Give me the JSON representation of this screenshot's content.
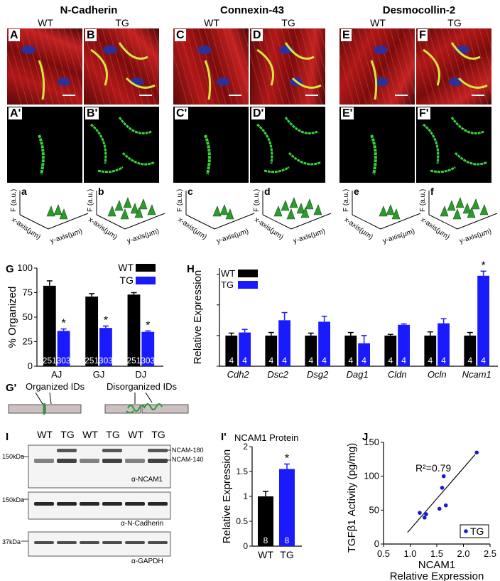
{
  "headers": {
    "ncad": "N-Cadherin",
    "cx43": "Connexin-43",
    "dsc2": "Desmocollin-2",
    "wt": "WT",
    "tg": "TG"
  },
  "micro_labels": [
    "A",
    "B",
    "C",
    "D",
    "E",
    "F"
  ],
  "micro_labels_prime": [
    "A'",
    "B'",
    "C'",
    "D'",
    "E'",
    "F'"
  ],
  "surf_labels": [
    "a",
    "b",
    "c",
    "d",
    "e",
    "f"
  ],
  "surf_axes": {
    "f": "F (a.u.)",
    "x": "x-axis(µm)",
    "y": "y-axis(µm)"
  },
  "panelG": {
    "label": "G",
    "chart_data": {
      "type": "bar",
      "ylabel": "% Organized",
      "ylim": [
        0,
        100
      ],
      "yticks": [
        0,
        25,
        50,
        75,
        100
      ],
      "categories": [
        "AJ",
        "GJ",
        "DJ"
      ],
      "series": [
        {
          "name": "WT",
          "values": [
            82,
            71,
            73
          ],
          "err": [
            5,
            3,
            2
          ],
          "n": [
            "251",
            "251",
            "251"
          ],
          "color": "#000000"
        },
        {
          "name": "TG",
          "values": [
            36,
            39,
            35
          ],
          "err": [
            2,
            2,
            1
          ],
          "n": [
            "303",
            "303",
            "303"
          ],
          "color": "#1a1aff"
        }
      ],
      "sig": [
        true,
        true,
        true
      ]
    }
  },
  "panelH": {
    "label": "H",
    "chart_data": {
      "type": "bar",
      "ylabel": "Relative Expression",
      "ylim": [
        0,
        3.2
      ],
      "categories": [
        "Cdh2",
        "Dsc2",
        "Dsg2",
        "Dag1",
        "Cldn",
        "Ocln",
        "Ncam1"
      ],
      "series": [
        {
          "name": "WT",
          "values": [
            1.0,
            1.0,
            1.0,
            1.0,
            1.0,
            1.0,
            1.0
          ],
          "err": [
            0.08,
            0.1,
            0.08,
            0.1,
            0.04,
            0.12,
            0.1
          ],
          "n": [
            "4",
            "4",
            "4",
            "4",
            "4",
            "4",
            "4"
          ],
          "color": "#000000"
        },
        {
          "name": "TG",
          "values": [
            1.1,
            1.5,
            1.45,
            0.75,
            1.35,
            1.4,
            2.95
          ],
          "err": [
            0.1,
            0.25,
            0.18,
            0.25,
            0.03,
            0.15,
            0.15
          ],
          "n": [
            "4",
            "4",
            "4",
            "4",
            "4",
            "4",
            "4"
          ],
          "color": "#1a1aff"
        }
      ],
      "sig": [
        false,
        false,
        false,
        false,
        false,
        false,
        true
      ]
    }
  },
  "panelGp": {
    "label": "G'",
    "organized": "Organized IDs",
    "disorganized": "Disorganized IDs"
  },
  "panelI": {
    "label": "I",
    "lanes": [
      "WT",
      "TG",
      "WT",
      "TG",
      "WT",
      "TG"
    ],
    "mw1": "150kDa",
    "mw2": "150kDa",
    "mw3": "37kDa",
    "band180": "NCAM-180",
    "band140": "NCAM-140",
    "ab1": "α-NCAM1",
    "ab2": "α-N-Cadherin",
    "ab3": "α-GAPDH"
  },
  "panelIp": {
    "label": "I'",
    "chart_data": {
      "type": "bar",
      "title": "NCAM1 Protein",
      "ylabel": "Relative Expression",
      "ylim": [
        0,
        2
      ],
      "yticks": [
        0,
        0.5,
        1,
        1.5,
        2
      ],
      "categories": [
        "WT",
        "TG"
      ],
      "values": [
        1.0,
        1.55
      ],
      "err": [
        0.1,
        0.1
      ],
      "n": [
        "8",
        "8"
      ],
      "colors": [
        "#000000",
        "#1a1aff"
      ],
      "sig": [
        false,
        true
      ]
    }
  },
  "panelJ": {
    "label": "J",
    "chart_data": {
      "type": "scatter",
      "xlabel": "NCAM1\nRelative Expression",
      "ylabel": "TGFβ1 Activity (pg/mg)",
      "xlim": [
        0.5,
        2.5
      ],
      "ylim": [
        0,
        150
      ],
      "xticks": [
        0.5,
        1.0,
        1.5,
        2.0,
        2.5
      ],
      "yticks": [
        0,
        50,
        100,
        150
      ],
      "annotation": "R²=0.79",
      "legend": "TG",
      "points": [
        {
          "x": 1.18,
          "y": 46
        },
        {
          "x": 1.27,
          "y": 39
        },
        {
          "x": 1.3,
          "y": 44
        },
        {
          "x": 1.55,
          "y": 52
        },
        {
          "x": 1.6,
          "y": 83
        },
        {
          "x": 1.63,
          "y": 100
        },
        {
          "x": 1.67,
          "y": 57
        },
        {
          "x": 2.25,
          "y": 135
        }
      ],
      "fit": {
        "x1": 0.95,
        "y1": 17,
        "x2": 2.22,
        "y2": 132
      }
    }
  }
}
